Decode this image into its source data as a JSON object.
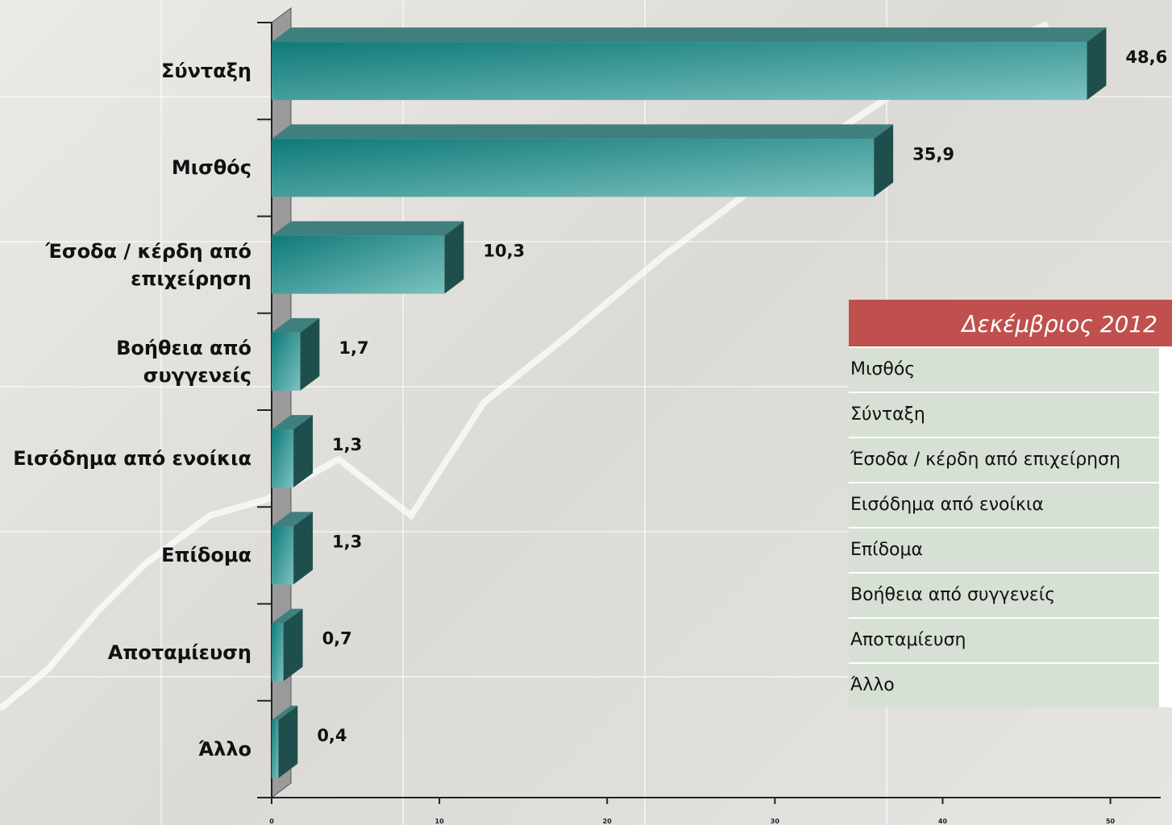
{
  "chart_data": {
    "type": "bar3d",
    "orientation": "horizontal",
    "categories": [
      "Σύνταξη",
      "Μισθός",
      "Έσοδα / κέρδη από επιχείρηση",
      "Βοήθεια από συγγενείς",
      "Εισόδημα από ενοίκια",
      "Επίδομα",
      "Αποταμίευση",
      "Άλλο"
    ],
    "values": [
      48.6,
      35.9,
      10.3,
      1.7,
      1.3,
      1.3,
      0.7,
      0.4
    ],
    "value_labels": [
      "48,6",
      "35,9",
      "10,3",
      "1,7",
      "1,3",
      "1,3",
      "0,7",
      "0,4"
    ],
    "color": "#2a9a98",
    "xlim": [
      0,
      53
    ],
    "xticks": [
      0,
      10,
      20,
      30,
      40,
      50
    ]
  },
  "table": {
    "header": "Δεκέμβριος 2012",
    "rows": [
      "Μισθός",
      "Σύνταξη",
      "Έσοδα / κέρδη από επιχείρηση",
      "Εισόδημα από ενοίκια",
      "Επίδομα",
      "Βοήθεια από συγγενείς",
      "Αποταμίευση",
      "Άλλο"
    ]
  }
}
